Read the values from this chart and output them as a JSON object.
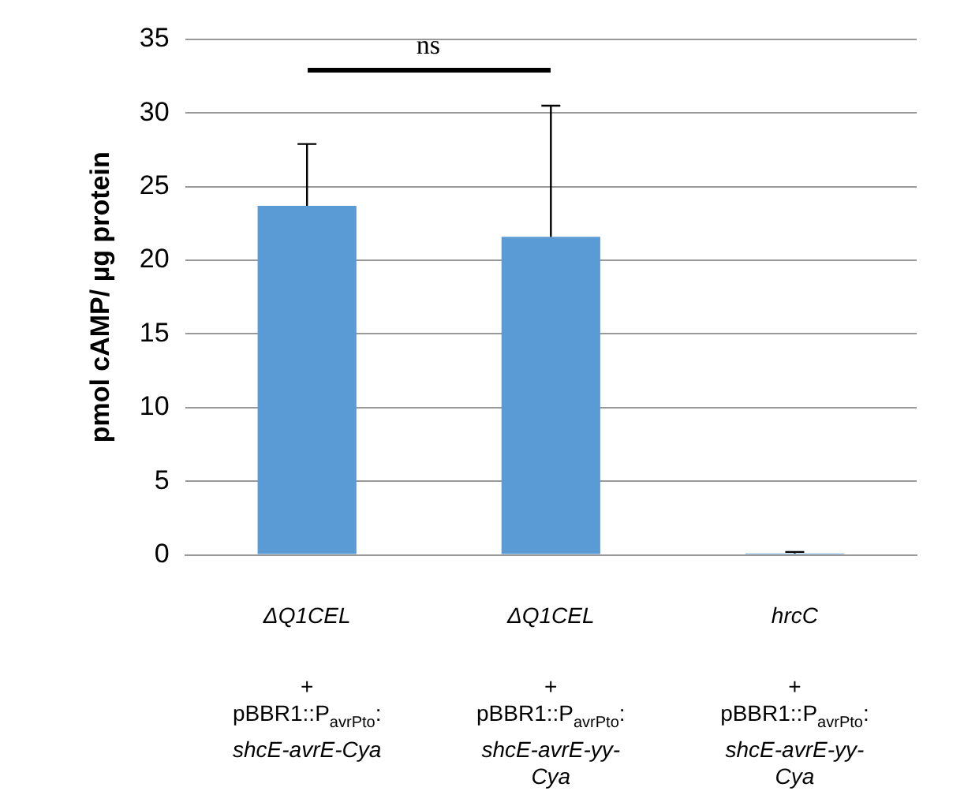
{
  "chart_data": {
    "type": "bar",
    "ylabel": "pmol cAMP/ µg protein",
    "categories": [
      "ΔQ1CEL\n+\npBBR1::P$_{avrPto}$:\nshcE-avrE-Cya",
      "ΔQ1CEL\n+\npBBR1::P$_{avrPto}$:\nshcE-avrE-yy-\nCya",
      "hrcC\n+\npBBR1::P$_{avrPto}$:\nshcE-avrE-yy-\nCya"
    ],
    "values": [
      23.7,
      21.6,
      0.1
    ],
    "errors": [
      [
        23.7,
        27.9
      ],
      [
        21.6,
        30.5
      ],
      [
        0.1,
        0.2
      ]
    ],
    "color": "#5b9bd5",
    "ylim": [
      0,
      35
    ],
    "yticks": [
      0,
      5,
      10,
      15,
      20,
      25,
      30,
      35
    ],
    "grid": "y",
    "annotations": [
      "ns"
    ]
  }
}
